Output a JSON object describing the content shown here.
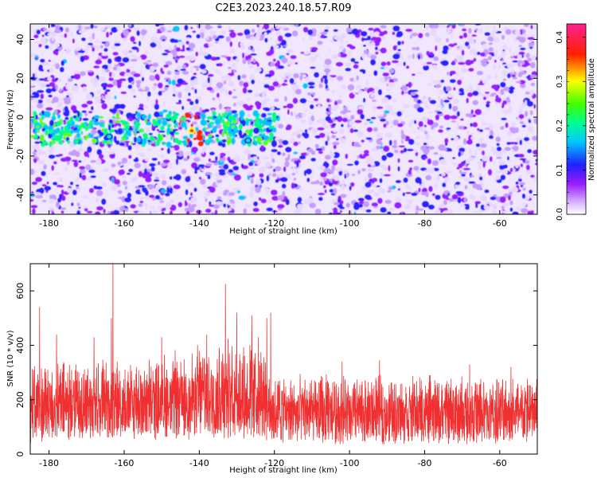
{
  "title": "C2E3.2023.240.18.57.R09",
  "chart_data": [
    {
      "type": "heatmap",
      "xlabel": "Height of straight line (km)",
      "ylabel": "Frequency (Hz)",
      "xlim": [
        -185,
        -50
      ],
      "ylim": [
        -50,
        48
      ],
      "xticks": [
        -180,
        -160,
        -140,
        -120,
        -100,
        -80,
        -60
      ],
      "yticks": [
        -40,
        -20,
        0,
        20,
        40
      ],
      "colorbar": {
        "label": "Normalized spectral amplitude",
        "range": [
          0.0,
          0.43
        ],
        "ticks": [
          0.0,
          0.1,
          0.2,
          0.3,
          0.4
        ],
        "tick_labels": [
          "0.0",
          "0.1",
          "0.2",
          "0.3",
          "0.4"
        ],
        "colors": [
          "#ffffff",
          "#9a1cff",
          "#2020ff",
          "#00e0ff",
          "#00ff40",
          "#ffff00",
          "#ff0000",
          "#ff2090"
        ]
      },
      "feature": "Strong signal band near 0 to -15 Hz between -185 and -120 km; peak amplitude about 0.4 near -142 km, -7 Hz"
    },
    {
      "type": "line",
      "xlabel": "Height of straight line (km)",
      "ylabel": "SNR (10 * v/v)",
      "xlim": [
        -185,
        -50
      ],
      "ylim": [
        0,
        700
      ],
      "xticks": [
        -180,
        -160,
        -140,
        -120,
        -100,
        -80,
        -60
      ],
      "yticks": [
        0,
        200,
        400,
        600
      ],
      "color": "#f03030",
      "envelope": [
        {
          "x": -185,
          "low": 40,
          "mean": 160,
          "high": 300
        },
        {
          "x": -175,
          "low": 45,
          "mean": 165,
          "high": 320
        },
        {
          "x": -165,
          "low": 50,
          "mean": 170,
          "high": 330
        },
        {
          "x": -155,
          "low": 50,
          "mean": 170,
          "high": 330
        },
        {
          "x": -145,
          "low": 50,
          "mean": 175,
          "high": 360
        },
        {
          "x": -135,
          "low": 55,
          "mean": 185,
          "high": 400
        },
        {
          "x": -130,
          "low": 55,
          "mean": 185,
          "high": 400
        },
        {
          "x": -125,
          "low": 50,
          "mean": 180,
          "high": 420
        },
        {
          "x": -120,
          "low": 40,
          "mean": 140,
          "high": 280
        },
        {
          "x": -100,
          "low": 35,
          "mean": 130,
          "high": 270
        },
        {
          "x": -80,
          "low": 35,
          "mean": 130,
          "high": 270
        },
        {
          "x": -60,
          "low": 35,
          "mean": 130,
          "high": 270
        },
        {
          "x": -50,
          "low": 35,
          "mean": 130,
          "high": 280
        }
      ],
      "peaks": [
        {
          "x": -182.5,
          "y": 540
        },
        {
          "x": -178,
          "y": 440
        },
        {
          "x": -168,
          "y": 430
        },
        {
          "x": -163,
          "y": 700
        },
        {
          "x": -163.4,
          "y": 500
        },
        {
          "x": -150,
          "y": 430
        },
        {
          "x": -138,
          "y": 440
        },
        {
          "x": -133,
          "y": 625
        },
        {
          "x": -130,
          "y": 520
        },
        {
          "x": -126,
          "y": 510
        },
        {
          "x": -122,
          "y": 500
        },
        {
          "x": -121,
          "y": 520
        },
        {
          "x": -102,
          "y": 340
        },
        {
          "x": -92,
          "y": 345
        },
        {
          "x": -68,
          "y": 330
        },
        {
          "x": -57,
          "y": 320
        }
      ]
    }
  ]
}
